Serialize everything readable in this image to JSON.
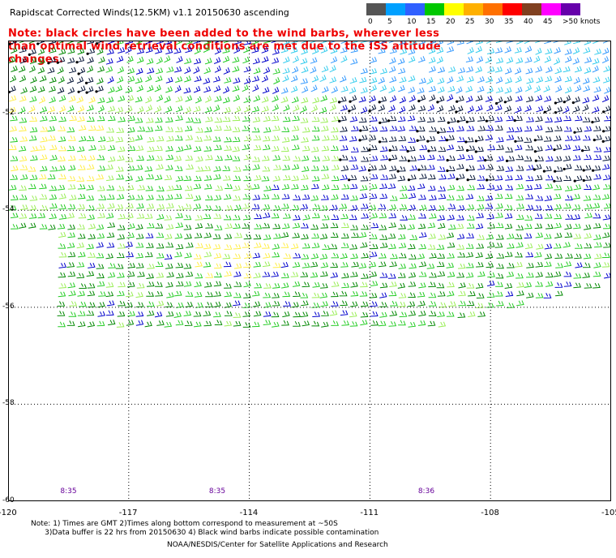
{
  "header": {
    "title": "Rapidscat Corrected Winds(12.5KM) v1.1 20150630 ascending",
    "note": "Note: black circles have been added to the wind barbs, wherever less than optimal wind retrieval conditions are met due to the ISS altitude changes."
  },
  "color_scale": {
    "unit_label": ">50 knots",
    "labels": [
      "0",
      "5",
      "10",
      "15",
      "20",
      "25",
      "30",
      "35",
      "40",
      "45",
      ">50 knots"
    ],
    "colors": [
      "#555555",
      "#00a0ff",
      "#3060ff",
      "#00c800",
      "#ffff00",
      "#ffb000",
      "#ff7000",
      "#ff0000",
      "#804020",
      "#ff00ff",
      "#6600aa"
    ]
  },
  "map": {
    "lon_range": [
      -120,
      -105
    ],
    "lat_range": [
      -60,
      -50.5
    ],
    "x_ticks": [
      "-120",
      "-117",
      "-114",
      "-111",
      "-108",
      "-105"
    ],
    "y_ticks": [
      "-52",
      "-54",
      "-56",
      "-58",
      "-60"
    ],
    "pass_times": [
      {
        "label": "8:35",
        "lon": -118.5
      },
      {
        "label": "8:35",
        "lon": -114.8
      },
      {
        "label": "8:36",
        "lon": -109.6
      }
    ]
  },
  "footer": {
    "notes_line1": "Note: 1) Times are GMT 2)Times along bottom correspond to measurement at ~50S",
    "notes_line2": "3)Data buffer is 22 hrs from 20150630 4) Black wind barbs indicate possible contamination",
    "credit": "NOAA/NESDIS/Center for Satellite Applications and Research"
  }
}
